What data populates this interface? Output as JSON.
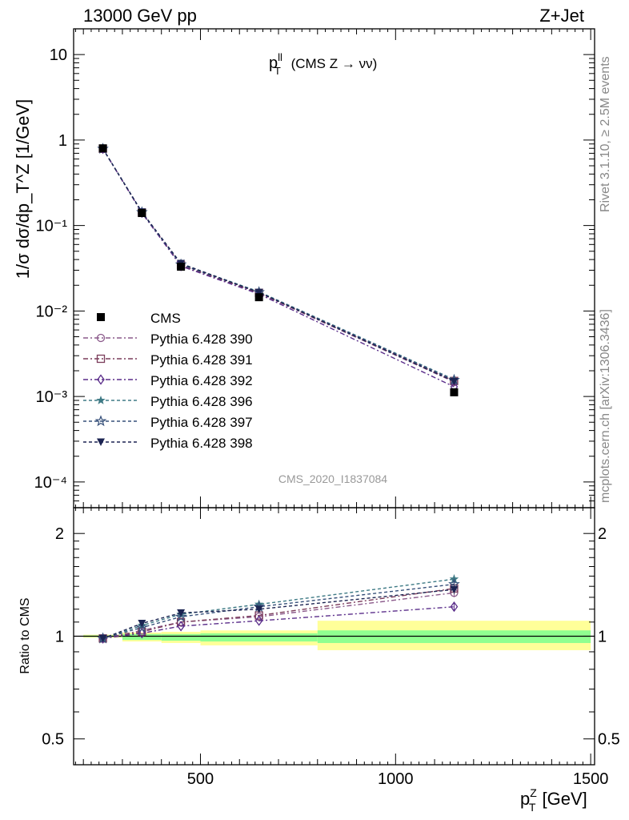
{
  "header": {
    "left": "13000 GeV pp",
    "right": "Z+Jet"
  },
  "side_text": {
    "top": "Rivet 3.1.10, ≥ 2.5M events",
    "bottom": "mcplots.cern.ch [arXiv:1306.3436]"
  },
  "watermark": "CMS_2020_I1837084",
  "colors": {
    "data": "#000000",
    "band_inner": "#90ff90",
    "band_outer": "#ffff99"
  },
  "chart_data": [
    {
      "type": "line",
      "title": "p_T^ll (CMS Z → νν)",
      "title_parts": {
        "main": "p",
        "sup": "ll",
        "sub": "T",
        "rest": " (CMS Z → νν)"
      },
      "ylabel": "1/σ dσ/dp_T^Z [1/GeV]",
      "yscale": "log",
      "ylim": [
        5e-05,
        20
      ],
      "xlim": [
        175,
        1510
      ],
      "y_ticks": [
        {
          "value": 10,
          "label": "10"
        },
        {
          "value": 1,
          "label": "1"
        },
        {
          "value": 0.1,
          "label": "10⁻¹"
        },
        {
          "value": 0.01,
          "label": "10⁻²"
        },
        {
          "value": 0.001,
          "label": "10⁻³"
        },
        {
          "value": 0.0001,
          "label": "10⁻⁴"
        }
      ],
      "legend_position": "left-middle",
      "x": [
        250,
        350,
        450,
        650,
        1150
      ],
      "data_series": {
        "name": "CMS",
        "values": [
          0.8,
          0.14,
          0.033,
          0.0145,
          0.00112
        ],
        "errors": [
          0.012,
          0.003,
          0.001,
          0.0005,
          8e-05
        ],
        "marker": "square",
        "color": "#000000"
      },
      "series": [
        {
          "name": "Pythia 6.428 390",
          "values": [
            0.79,
            0.14,
            0.034,
            0.0162,
            0.00148
          ],
          "marker": "circle-open",
          "color": "#8b5a8b",
          "dash": "6,3,2,3"
        },
        {
          "name": "Pythia 6.428 391",
          "values": [
            0.79,
            0.142,
            0.0345,
            0.0163,
            0.00152
          ],
          "marker": "square-open",
          "color": "#7a3b5a",
          "dash": "6,3,2,3"
        },
        {
          "name": "Pythia 6.428 392",
          "values": [
            0.79,
            0.141,
            0.0335,
            0.0158,
            0.0013
          ],
          "marker": "diamond-open",
          "color": "#5a2d8a",
          "dash": "6,3,2,3"
        },
        {
          "name": "Pythia 6.428 396",
          "values": [
            0.79,
            0.143,
            0.0355,
            0.0168,
            0.00158
          ],
          "marker": "star-filled",
          "color": "#3e7a85",
          "dash": "4,3"
        },
        {
          "name": "Pythia 6.428 397",
          "values": [
            0.79,
            0.143,
            0.035,
            0.0166,
            0.00156
          ],
          "marker": "star-open",
          "color": "#36507a",
          "dash": "4,3"
        },
        {
          "name": "Pythia 6.428 398",
          "values": [
            0.79,
            0.144,
            0.036,
            0.0165,
            0.0015
          ],
          "marker": "triangle-down",
          "color": "#1c2452",
          "dash": "4,3"
        }
      ]
    },
    {
      "type": "line",
      "ylabel": "Ratio to CMS",
      "xlabel": "p_T^Z [GeV]",
      "xlabel_parts": {
        "main": "p",
        "sup": "Z",
        "sub": "T",
        "rest": " [GeV]"
      },
      "yscale": "log",
      "ylim": [
        0.42,
        2.38
      ],
      "xlim": [
        175,
        1510
      ],
      "y_ticks": [
        {
          "value": 2,
          "label": "2"
        },
        {
          "value": 1,
          "label": "1"
        },
        {
          "value": 0.5,
          "label": "0.5"
        }
      ],
      "x_ticks": [
        {
          "value": 500,
          "label": "500"
        },
        {
          "value": 1000,
          "label": "1000"
        },
        {
          "value": 1500,
          "label": "1500"
        }
      ],
      "uncertainty_bands": [
        {
          "x_from": 200,
          "x_to": 300,
          "inner": [
            0.995,
            1.005
          ],
          "outer": [
            0.99,
            1.01
          ]
        },
        {
          "x_from": 300,
          "x_to": 400,
          "inner": [
            0.975,
            1.015
          ],
          "outer": [
            0.965,
            1.025
          ]
        },
        {
          "x_from": 400,
          "x_to": 500,
          "inner": [
            0.97,
            1.015
          ],
          "outer": [
            0.955,
            1.03
          ]
        },
        {
          "x_from": 500,
          "x_to": 800,
          "inner": [
            0.965,
            1.02
          ],
          "outer": [
            0.94,
            1.04
          ]
        },
        {
          "x_from": 800,
          "x_to": 1500,
          "inner": [
            0.955,
            1.04
          ],
          "outer": [
            0.91,
            1.11
          ]
        }
      ],
      "x": [
        250,
        350,
        450,
        650,
        1150
      ],
      "series": [
        {
          "name": "Pythia 6.428 390",
          "values": [
            0.985,
            1.04,
            1.1,
            1.14,
            1.34
          ]
        },
        {
          "name": "Pythia 6.428 391",
          "values": [
            0.985,
            1.03,
            1.1,
            1.15,
            1.38
          ]
        },
        {
          "name": "Pythia 6.428 392",
          "values": [
            0.985,
            1.02,
            1.07,
            1.11,
            1.22
          ]
        },
        {
          "name": "Pythia 6.428 396",
          "values": [
            0.985,
            1.075,
            1.16,
            1.24,
            1.47
          ]
        },
        {
          "name": "Pythia 6.428 397",
          "values": [
            0.985,
            1.06,
            1.14,
            1.22,
            1.42
          ]
        },
        {
          "name": "Pythia 6.428 398",
          "values": [
            0.985,
            1.09,
            1.17,
            1.2,
            1.37
          ]
        }
      ]
    }
  ]
}
